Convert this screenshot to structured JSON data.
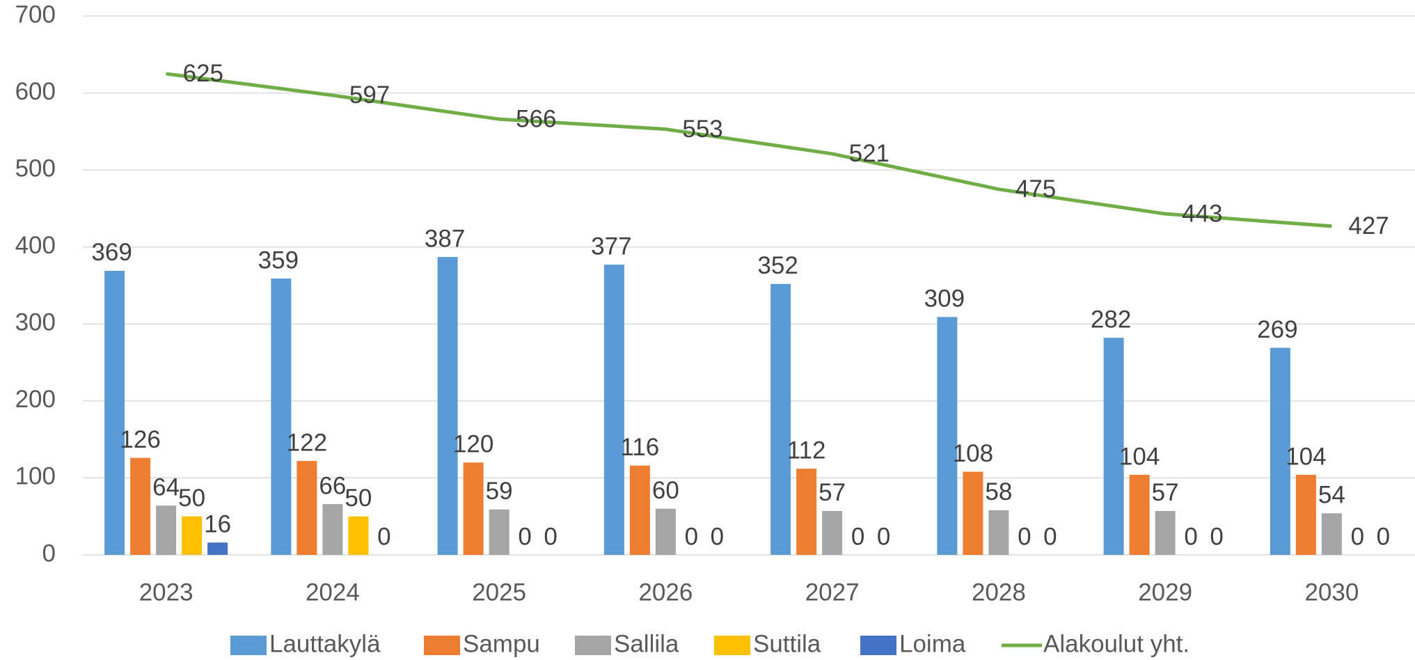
{
  "chart_data": {
    "type": "bar",
    "categories": [
      "2023",
      "2024",
      "2025",
      "2026",
      "2027",
      "2028",
      "2029",
      "2030"
    ],
    "series": [
      {
        "name": "Lauttakylä",
        "color": "#5b9bd5",
        "values": [
          369,
          359,
          387,
          377,
          352,
          309,
          282,
          269
        ]
      },
      {
        "name": "Sampu",
        "color": "#ed7d31",
        "values": [
          126,
          122,
          120,
          116,
          112,
          108,
          104,
          104
        ]
      },
      {
        "name": "Sallila",
        "color": "#a5a5a5",
        "values": [
          64,
          66,
          59,
          60,
          57,
          58,
          57,
          54
        ]
      },
      {
        "name": "Suttila",
        "color": "#ffc000",
        "values": [
          50,
          50,
          0,
          0,
          0,
          0,
          0,
          0
        ]
      },
      {
        "name": "Loima",
        "color": "#4472c4",
        "values": [
          16,
          0,
          0,
          0,
          0,
          0,
          0,
          0
        ]
      },
      {
        "name": "Alakoulut yht.",
        "color": "#70ad47",
        "type": "line",
        "values": [
          625,
          597,
          566,
          553,
          521,
          475,
          443,
          427
        ]
      }
    ],
    "ylim": [
      0,
      700
    ],
    "yticks": [
      0,
      100,
      200,
      300,
      400,
      500,
      600,
      700
    ],
    "grid": true,
    "legend": "bottom"
  }
}
